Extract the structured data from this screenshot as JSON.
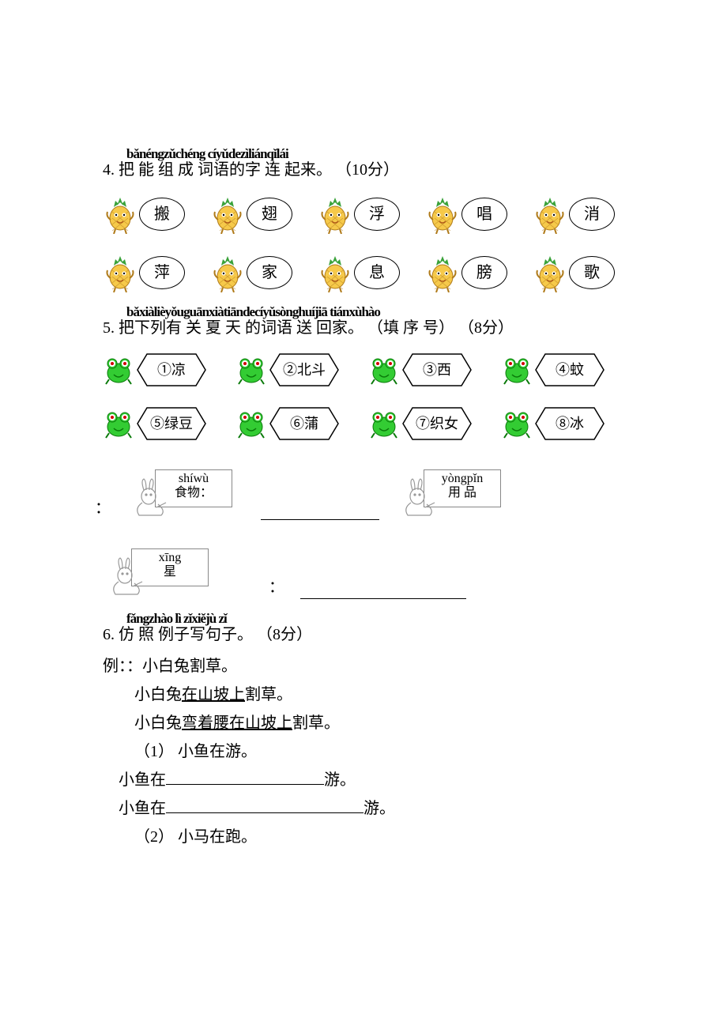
{
  "colors": {
    "text": "#000000",
    "bg": "#ffffff",
    "pineapple_body": "#f6c94a",
    "pineapple_leaf": "#3aa23a",
    "pineapple_outline": "#b07b1a",
    "frog_body": "#33cc33",
    "frog_dark": "#0a7a0a",
    "frog_eye": "#ffffff",
    "frog_pupil": "#d00000",
    "bunny_line": "#999999",
    "box_border": "#888888"
  },
  "q4": {
    "pinyin": "bǎnéngzǔchéng cíyǔdezìliánqǐlái",
    "title": "4. 把 能 组  成   词语的字 连 起来。  （10分）",
    "row1": [
      "搬",
      "翅",
      "浮",
      "唱",
      "消"
    ],
    "row2": [
      "萍",
      "家",
      "息",
      "膀",
      "歌"
    ]
  },
  "q5": {
    "pinyin": "bǎxiàlièyǒuguānxiàtiāndecíyǔsònghuíjiā      tiánxùhào",
    "title": "5. 把下列有   关  夏 天 的词语 送  回家。  （填 序 号）  （8分）",
    "row1": [
      "①凉",
      "②北斗",
      "③西",
      "④蚊"
    ],
    "row2": [
      "⑤绿豆",
      "⑥蒲",
      "⑦织女",
      "⑧冰"
    ],
    "boxes": {
      "shiwu_pinyin": "shíwù",
      "shiwu_hanzi": "食物：",
      "yongpin_pinyin": "yòngpǐn",
      "yongpin_hanzi": "用  品",
      "xing_pinyin": "xīng",
      "xing_hanzi": "星"
    }
  },
  "q6": {
    "pinyin": "fǎngzhào lì zǐxiějù zǐ",
    "title": "6.  仿   照 例子写句子。 （8分）",
    "example_label": "例：：小白兔割草。",
    "example_2": "小白兔",
    "example_2u": "在山坡上",
    "example_2tail": "割草。",
    "example_3": "小白兔",
    "example_3u": "弯着腰在山坡上",
    "example_3tail": "割草。",
    "p1_label": "（1） 小鱼在游。",
    "p1_a": "小鱼在",
    "p1_a_tail": "游。",
    "p1_b": "小鱼在",
    "p1_b_tail": "游。",
    "p2_label": "（2） 小马在跑。"
  }
}
